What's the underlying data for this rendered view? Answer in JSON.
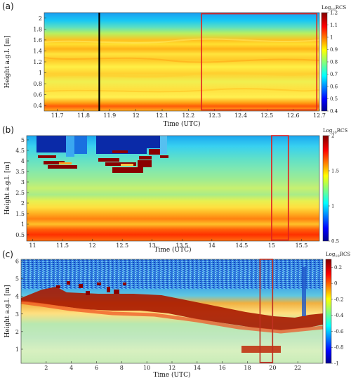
{
  "chart_data": [
    {
      "type": "heatmap",
      "panel_label": "(a)",
      "xlabel": "Time (UTC)",
      "ylabel": "Height a.g.l. [m]",
      "xlim": [
        11.65,
        12.7
      ],
      "ylim": [
        0.3,
        2.1
      ],
      "xticks": [
        "11.7",
        "11.8",
        "11.9",
        "12",
        "12.1",
        "12.2",
        "12.3",
        "12.4",
        "12.5",
        "12.6",
        "12.7"
      ],
      "yticks": [
        "0.4",
        "0.6",
        "0.8",
        "1",
        "1.2",
        "1.4",
        "1.6",
        "1.8",
        "2"
      ],
      "colorbar": {
        "title_base": "Log",
        "title_sub": "10",
        "title_rest": "RCS",
        "min": 0.4,
        "max": 1.2,
        "ticks": [
          "1.2",
          "1.1",
          "1",
          "0.9",
          "0.8",
          "0.7",
          "0.6",
          "0.5",
          "0.4"
        ]
      },
      "annotations": [
        {
          "kind": "vertical_line",
          "x": 11.86,
          "color": "#000000"
        },
        {
          "kind": "rectangle",
          "x0": 12.25,
          "x1": 12.69,
          "y0": 0.32,
          "y1": 2.08,
          "color": "#e02020"
        }
      ]
    },
    {
      "type": "heatmap",
      "panel_label": "(b)",
      "xlabel": "Time (UTC)",
      "ylabel": "Height a.g.l. [m]",
      "xlim": [
        10.9,
        15.8
      ],
      "ylim": [
        0.2,
        5.2
      ],
      "xticks": [
        "11",
        "11.5",
        "12",
        "12.5",
        "13",
        "13.5",
        "14",
        "14.5",
        "15",
        "15.5"
      ],
      "yticks": [
        "0.5",
        "1",
        "1.5",
        "2",
        "2.5",
        "3",
        "3.5",
        "4",
        "4.5",
        "5"
      ],
      "colorbar": {
        "title_base": "Log",
        "title_sub": "10",
        "title_rest": "RCS",
        "min": 0.5,
        "max": 2,
        "ticks": [
          "2",
          "1.5",
          "1",
          "0.5"
        ]
      },
      "annotations": [
        {
          "kind": "rectangle",
          "x0": 15.0,
          "x1": 15.28,
          "y0": 0.25,
          "y1": 5.2,
          "color": "#e02020"
        }
      ]
    },
    {
      "type": "heatmap",
      "panel_label": "(c)",
      "xlabel": "Time (UTC)",
      "ylabel": "Height a.g.l. [m]",
      "xlim": [
        0,
        24
      ],
      "ylim": [
        0.2,
        6.1
      ],
      "xticks": [
        "2",
        "4",
        "6",
        "8",
        "10",
        "12",
        "14",
        "16",
        "18",
        "20",
        "22"
      ],
      "yticks": [
        "1",
        "2",
        "3",
        "4",
        "5",
        "6"
      ],
      "colorbar": {
        "title_base": "Log",
        "title_sub": "10",
        "title_rest": "RCS",
        "min": -1,
        "max": 0.3,
        "ticks": [
          "0.2",
          "0",
          "-0.2",
          "-0.4",
          "-0.6",
          "-0.8",
          "-1"
        ]
      },
      "annotations": [
        {
          "kind": "rectangle",
          "x0": 19.0,
          "x1": 20.0,
          "y0": 0.25,
          "y1": 6.1,
          "color": "#c03020"
        }
      ]
    }
  ]
}
